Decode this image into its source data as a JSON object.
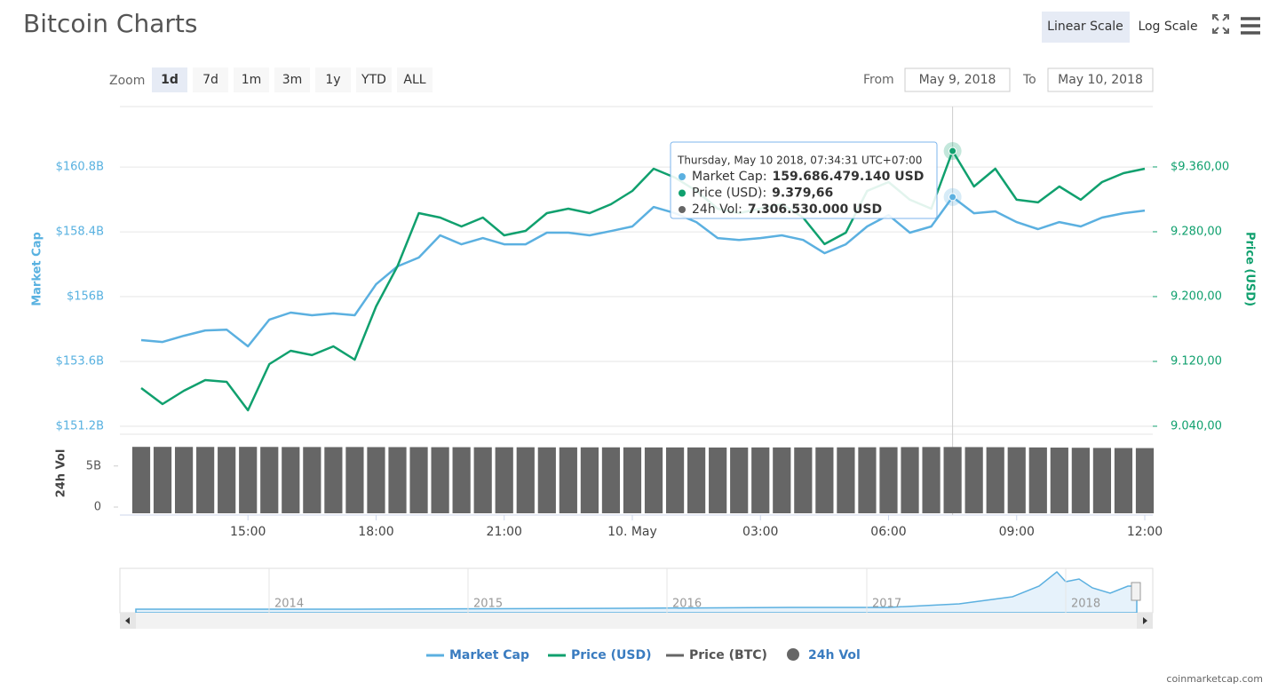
{
  "ui": {
    "title": "Bitcoin Charts",
    "scale_buttons": [
      "Linear Scale",
      "Log Scale"
    ],
    "zoom_label": "Zoom",
    "zoom_buttons": [
      "1d",
      "7d",
      "1m",
      "3m",
      "1y",
      "YTD",
      "ALL"
    ],
    "from_label": "From",
    "from": "May 9, 2018",
    "to_label": "To",
    "to": "May 10, 2018",
    "credit": "coinmarketcap.com"
  },
  "chart_data": {
    "type": "line",
    "categories": [
      null,
      null,
      null,
      null,
      null,
      "15:00",
      null,
      null,
      null,
      null,
      null,
      "18:00",
      null,
      null,
      null,
      null,
      null,
      "21:00",
      null,
      null,
      null,
      null,
      null,
      "10. May",
      null,
      null,
      null,
      null,
      null,
      "03:00",
      null,
      null,
      null,
      null,
      null,
      "06:00",
      null,
      null,
      null,
      null,
      null,
      "09:00",
      null,
      null,
      null,
      null,
      null,
      "12:00"
    ],
    "y_label": "Market Cap",
    "ylim": [
      150.97,
      163.04
    ],
    "yticks": [
      {
        "value": 151.2,
        "label": "$151.2B"
      },
      {
        "value": 153.6,
        "label": "$153.6B"
      },
      {
        "value": 156,
        "label": "$156B"
      },
      {
        "value": 158.4,
        "label": "$158.4B"
      },
      {
        "value": 160.8,
        "label": "$160.8B"
      }
    ],
    "y2_label": "Price (USD)",
    "y2lim": [
      9032.3,
      9434.5
    ],
    "y2ticks": [
      {
        "value": 9040,
        "label": "9.040,00"
      },
      {
        "value": 9120,
        "label": "9.120,00"
      },
      {
        "value": 9200,
        "label": "9.200,00"
      },
      {
        "value": 9280,
        "label": "9.280,00"
      },
      {
        "value": 9360,
        "label": "$9.360,00"
      }
    ],
    "y3_label": "24h Vol",
    "y3lim": [
      0,
      8
    ],
    "y3ticks": [
      0,
      {
        "value": 5,
        "label": "5B"
      }
    ],
    "grid": true,
    "series": [
      {
        "name": "Market Cap",
        "color": "#5bb0e0",
        "values": [
          154.39,
          154.32,
          154.55,
          154.75,
          154.78,
          154.16,
          155.15,
          155.41,
          155.31,
          155.38,
          155.31,
          156.46,
          157.12,
          157.45,
          158.27,
          157.94,
          158.17,
          157.94,
          157.94,
          158.37,
          158.37,
          158.27,
          158.43,
          158.6,
          159.32,
          159.09,
          158.76,
          158.17,
          158.1,
          158.17,
          158.27,
          158.1,
          157.61,
          157.94,
          158.6,
          159.02,
          158.37,
          158.6,
          159.69,
          159.09,
          159.16,
          158.76,
          158.5,
          158.76,
          158.6,
          158.93,
          159.09,
          159.19
        ]
      },
      {
        "name": "Price (USD)",
        "color": "#10a06e",
        "axis": "y2",
        "values": [
          9087.1,
          9067.4,
          9083.8,
          9097.0,
          9094.8,
          9059.7,
          9116.7,
          9133.1,
          9127.7,
          9138.6,
          9122.2,
          9187.9,
          9237.3,
          9303.0,
          9297.5,
          9286.6,
          9297.5,
          9275.6,
          9281.1,
          9303.0,
          9308.5,
          9303.0,
          9314.0,
          9330.4,
          9357.8,
          9346.8,
          9330.4,
          9308.5,
          9303.0,
          9308.5,
          9314.0,
          9297.5,
          9264.7,
          9278.9,
          9330.4,
          9341.4,
          9319.5,
          9308.5,
          9379.66,
          9335.9,
          9357.8,
          9319.5,
          9316.2,
          9335.9,
          9319.5,
          9341.4,
          9352.3,
          9357.8
        ]
      },
      {
        "name": "24h Vol",
        "color": "#666666",
        "axis": "y3",
        "values": [
          7.33,
          7.33,
          7.32,
          7.32,
          7.32,
          7.33,
          7.32,
          7.31,
          7.31,
          7.3,
          7.31,
          7.3,
          7.3,
          7.3,
          7.29,
          7.29,
          7.28,
          7.28,
          7.28,
          7.27,
          7.27,
          7.27,
          7.27,
          7.27,
          7.26,
          7.26,
          7.26,
          7.25,
          7.25,
          7.26,
          7.26,
          7.26,
          7.27,
          7.27,
          7.28,
          7.29,
          7.3,
          7.31,
          7.31,
          7.3,
          7.29,
          7.28,
          7.26,
          7.24,
          7.22,
          7.2,
          7.19,
          7.18
        ]
      }
    ],
    "hidden_series": [
      {
        "name": "Price (BTC)",
        "color": "#666666"
      }
    ],
    "tooltip": {
      "index": 38,
      "date": "Thursday, May 10 2018, 07:34:31 UTC+07:00",
      "rows": [
        {
          "label": "Market Cap:",
          "value": "159.686.479.140 USD"
        },
        {
          "label": "Price (USD):",
          "value": "9.379,66"
        },
        {
          "label": "24h Vol:",
          "value": "7.306.530.000 USD"
        }
      ]
    },
    "navigator": {
      "years": [
        "2014",
        "2015",
        "2016",
        "2017",
        "2018"
      ]
    }
  }
}
